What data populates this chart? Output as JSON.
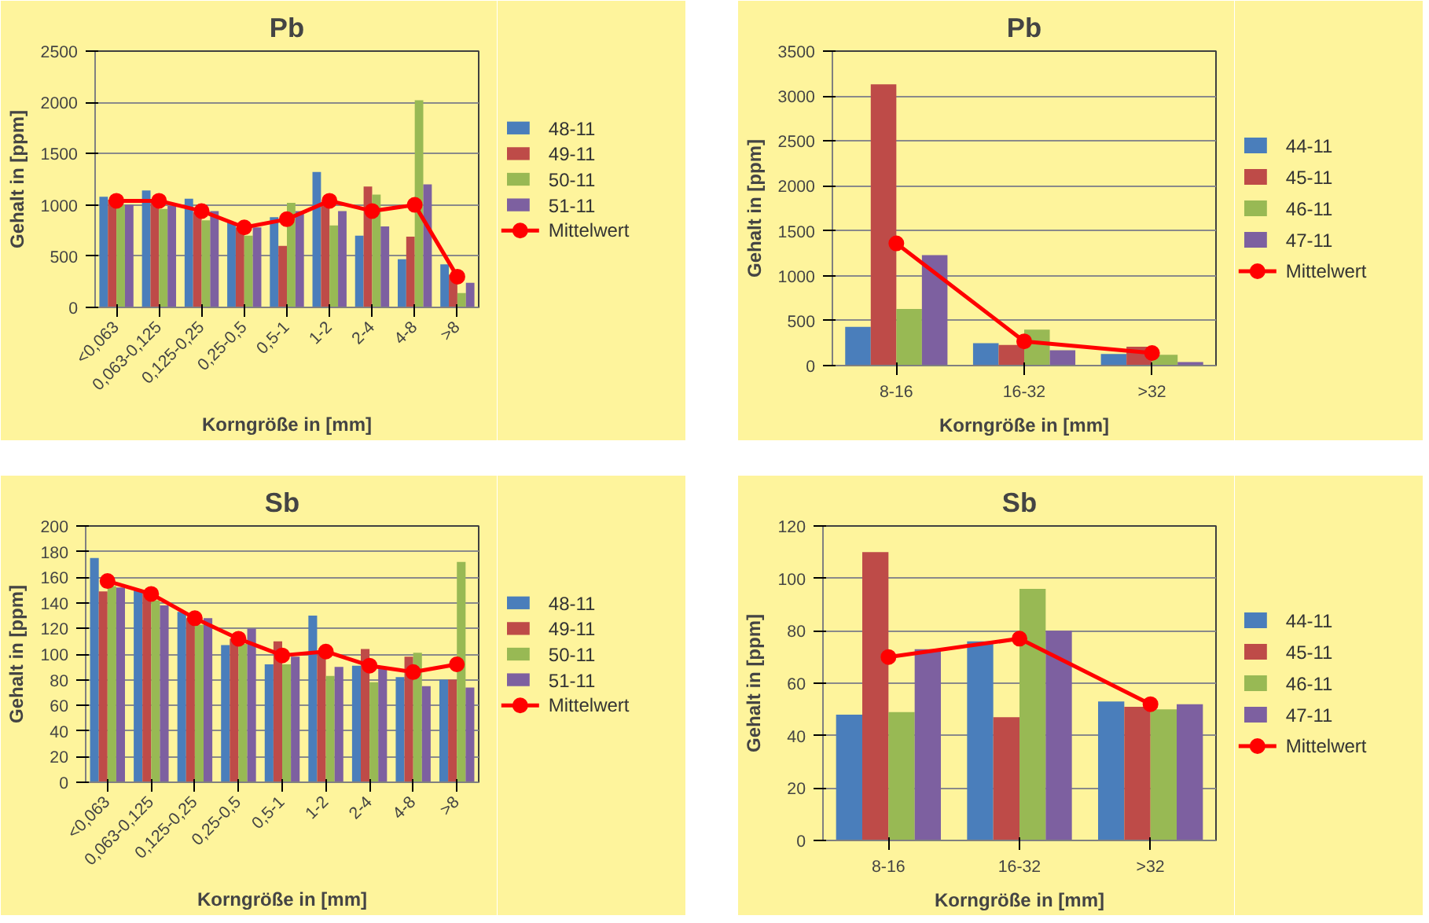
{
  "chart_data": [
    {
      "type": "bar",
      "title": "Pb",
      "xlabel": "Korngröße in [mm]",
      "ylabel": "Gehalt in [ppm]",
      "categories": [
        "<0,063",
        "0,063-0,125",
        "0,125-0,25",
        "0,25-0,5",
        "0,5-1",
        "1-2",
        "2-4",
        "4-8",
        ">8"
      ],
      "ylim": [
        0,
        2500
      ],
      "yticks": [
        0,
        500,
        1000,
        1500,
        2000,
        2500
      ],
      "grid": "y",
      "legend": "right",
      "series": [
        {
          "name": "48-11",
          "color": "#4a7ebb",
          "values": [
            1080,
            1140,
            1060,
            830,
            880,
            1320,
            700,
            470,
            420
          ]
        },
        {
          "name": "49-11",
          "color": "#be4b48",
          "values": [
            1050,
            1020,
            930,
            780,
            600,
            1030,
            1180,
            690,
            320
          ]
        },
        {
          "name": "50-11",
          "color": "#98b954",
          "values": [
            1000,
            960,
            850,
            700,
            1020,
            800,
            1100,
            2020,
            140
          ]
        },
        {
          "name": "51-11",
          "color": "#7d60a0",
          "values": [
            1000,
            990,
            940,
            780,
            940,
            940,
            790,
            1200,
            240
          ]
        },
        {
          "name": "Mittelwert",
          "color": "#ff0000",
          "type": "line",
          "marker": "circle",
          "values": [
            1040,
            1040,
            940,
            780,
            860,
            1040,
            940,
            1000,
            300
          ]
        }
      ]
    },
    {
      "type": "bar",
      "title": "Pb",
      "xlabel": "Korngröße in [mm]",
      "ylabel": "Gehalt in [ppm]",
      "categories": [
        "8-16",
        "16-32",
        ">32"
      ],
      "ylim": [
        0,
        3500
      ],
      "yticks": [
        0,
        500,
        1000,
        1500,
        2000,
        2500,
        3000,
        3500
      ],
      "grid": "y",
      "legend": "right",
      "series": [
        {
          "name": "44-11",
          "color": "#4a7ebb",
          "values": [
            430,
            250,
            130
          ]
        },
        {
          "name": "45-11",
          "color": "#be4b48",
          "values": [
            3130,
            230,
            210
          ]
        },
        {
          "name": "46-11",
          "color": "#98b954",
          "values": [
            630,
            400,
            120
          ]
        },
        {
          "name": "47-11",
          "color": "#7d60a0",
          "values": [
            1230,
            170,
            40
          ]
        },
        {
          "name": "Mittelwert",
          "color": "#ff0000",
          "type": "line",
          "marker": "circle",
          "values": [
            1360,
            270,
            140
          ]
        }
      ]
    },
    {
      "type": "bar",
      "title": "Sb",
      "xlabel": "Korngröße in [mm]",
      "ylabel": "Gehalt in [ppm]",
      "categories": [
        "<0,063",
        "0,063-0,125",
        "0,125-0,25",
        "0,25-0,5",
        "0,5-1",
        "1-2",
        "2-4",
        "4-8",
        ">8"
      ],
      "ylim": [
        0,
        200
      ],
      "yticks": [
        0,
        20,
        40,
        60,
        80,
        100,
        120,
        140,
        160,
        180,
        200
      ],
      "grid": "y",
      "legend": "right",
      "series": [
        {
          "name": "48-11",
          "color": "#4a7ebb",
          "values": [
            175,
            150,
            133,
            107,
            92,
            130,
            91,
            82,
            80
          ]
        },
        {
          "name": "49-11",
          "color": "#be4b48",
          "values": [
            149,
            150,
            128,
            112,
            110,
            100,
            104,
            98,
            80
          ]
        },
        {
          "name": "50-11",
          "color": "#98b954",
          "values": [
            153,
            142,
            123,
            108,
            92,
            83,
            78,
            101,
            172
          ]
        },
        {
          "name": "51-11",
          "color": "#7d60a0",
          "values": [
            152,
            138,
            128,
            120,
            98,
            90,
            89,
            75,
            74
          ]
        },
        {
          "name": "Mittelwert",
          "color": "#ff0000",
          "type": "line",
          "marker": "circle",
          "values": [
            157,
            147,
            128,
            112,
            99,
            102,
            91,
            86,
            92
          ]
        }
      ]
    },
    {
      "type": "bar",
      "title": "Sb",
      "xlabel": "Korngröße in [mm]",
      "ylabel": "Gehalt in [ppm]",
      "categories": [
        "8-16",
        "16-32",
        ">32"
      ],
      "ylim": [
        0,
        120
      ],
      "yticks": [
        0,
        20,
        40,
        60,
        80,
        100,
        120
      ],
      "grid": "y",
      "legend": "right",
      "series": [
        {
          "name": "44-11",
          "color": "#4a7ebb",
          "values": [
            48,
            76,
            53
          ]
        },
        {
          "name": "45-11",
          "color": "#be4b48",
          "values": [
            110,
            47,
            51
          ]
        },
        {
          "name": "46-11",
          "color": "#98b954",
          "values": [
            49,
            96,
            50
          ]
        },
        {
          "name": "47-11",
          "color": "#7d60a0",
          "values": [
            73,
            80,
            52
          ]
        },
        {
          "name": "Mittelwert",
          "color": "#ff0000",
          "type": "line",
          "marker": "circle",
          "values": [
            70,
            77,
            52
          ]
        }
      ]
    }
  ]
}
